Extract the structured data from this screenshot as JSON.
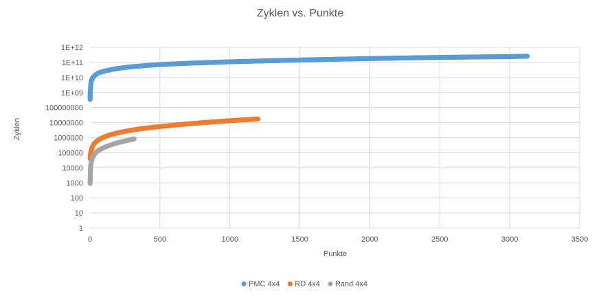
{
  "chart_data": {
    "type": "scatter",
    "title": "Zyklen vs. Punkte",
    "xlabel": "Punkte",
    "ylabel": "Zyklen",
    "xlim": [
      0,
      3500
    ],
    "ylim": [
      1,
      1000000000000
    ],
    "y_scale": "log",
    "grid": true,
    "legend_position": "bottom",
    "x_ticks": [
      "0",
      "500",
      "1000",
      "1500",
      "2000",
      "2500",
      "3000",
      "3500"
    ],
    "y_ticks": [
      "1",
      "10",
      "100",
      "1000",
      "10000",
      "100000",
      "1000000",
      "10000000",
      "100000000",
      "1E+09",
      "1E+10",
      "1E+11",
      "1E+12"
    ],
    "series": [
      {
        "name": "PMC 4x4",
        "color": "#5B9BD5",
        "x": [
          1,
          2,
          4,
          6,
          10,
          20,
          40,
          60,
          100,
          150,
          200,
          300,
          400,
          500,
          700,
          1000,
          1300,
          1500,
          2000,
          2500,
          3000,
          3125
        ],
        "y": [
          350000000,
          1000000000,
          2000000000,
          3500000000,
          6000000000,
          10000000000,
          15000000000,
          20000000000,
          26000000000,
          33000000000,
          40000000000,
          52000000000,
          62000000000,
          72000000000,
          88000000000,
          110000000000,
          130000000000,
          145000000000,
          180000000000,
          215000000000,
          245000000000,
          260000000000
        ]
      },
      {
        "name": "RD 4x4",
        "color": "#ED7D31",
        "x": [
          1,
          2,
          4,
          6,
          10,
          15,
          20,
          30,
          50,
          75,
          100,
          150,
          200,
          300,
          400,
          500,
          600,
          700,
          800,
          900,
          1000,
          1100,
          1200
        ],
        "y": [
          40000,
          60000,
          80000,
          110000,
          160000,
          220000,
          280000,
          400000,
          600000,
          850000,
          1100000,
          1600000,
          2100000,
          3200000,
          4300000,
          5500000,
          6800000,
          8200000,
          9800000,
          11500000,
          13300000,
          15300000,
          17500000
        ]
      },
      {
        "name": "Rand 4x4",
        "color": "#A5A5A5",
        "x": [
          1,
          3,
          5,
          8,
          12,
          16,
          20,
          30,
          40,
          50,
          60,
          80,
          100,
          120,
          150,
          180,
          200,
          230,
          260,
          290,
          315
        ],
        "y": [
          900,
          6000,
          12000,
          20000,
          30000,
          40000,
          50000,
          75000,
          100000,
          120000,
          140000,
          180000,
          220000,
          260000,
          330000,
          410000,
          460000,
          540000,
          630000,
          730000,
          820000
        ]
      }
    ]
  }
}
